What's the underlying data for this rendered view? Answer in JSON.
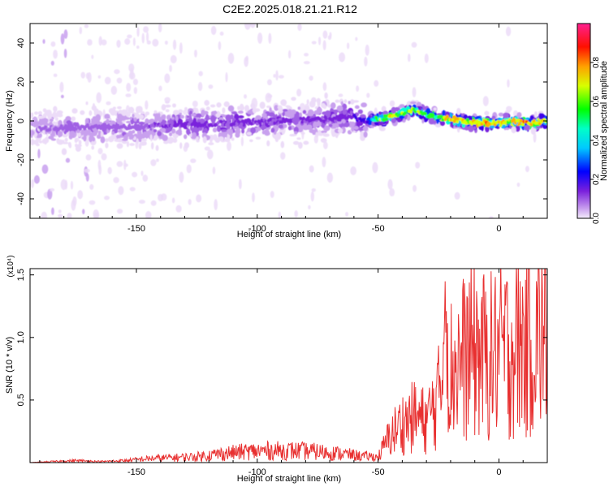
{
  "title": "C2E2.2025.018.21.21.R12",
  "chart_data": [
    {
      "type": "heatmap",
      "xlabel": "Height of straight line (km)",
      "ylabel": "Frequency (Hz)",
      "xlim": [
        -194,
        20
      ],
      "ylim": [
        -50,
        50
      ],
      "xticks": [
        -150,
        -100,
        -50,
        0
      ],
      "yticks": [
        -40,
        -20,
        0,
        20,
        40
      ],
      "colorbar": {
        "label": "Normalized spectral amplitude",
        "range": [
          0,
          1
        ],
        "ticks": [
          0.0,
          0.2,
          0.4,
          0.6,
          0.8
        ]
      },
      "ridge": {
        "x": [
          -190,
          -170,
          -150,
          -130,
          -110,
          -90,
          -70,
          -60,
          -55,
          -50,
          -45,
          -40,
          -35,
          -30,
          -25,
          -20,
          -15,
          -10,
          -5,
          0,
          5,
          10,
          15,
          20
        ],
        "y": [
          -4,
          -3,
          -3,
          -2,
          -1,
          0,
          1,
          2,
          0,
          1,
          2,
          4,
          6,
          3,
          2,
          1,
          0,
          -1,
          -1,
          -1,
          0,
          -1,
          -1,
          0
        ],
        "peak_amplitude": [
          0.2,
          0.25,
          0.25,
          0.3,
          0.3,
          0.3,
          0.3,
          0.35,
          0.4,
          0.7,
          0.8,
          0.7,
          0.75,
          0.7,
          0.75,
          0.85,
          0.8,
          0.85,
          0.9,
          0.85,
          0.8,
          0.9,
          0.85,
          0.8
        ]
      },
      "colors": [
        "#ffffff",
        "#ecdcf8",
        "#c8a0ee",
        "#a060e4",
        "#7a20dc",
        "#3c00e8",
        "#0030ff",
        "#00b8ff",
        "#00ffd8",
        "#20ff20",
        "#d8ff00",
        "#ffb000",
        "#ff3000",
        "#ff2080"
      ]
    },
    {
      "type": "line",
      "xlabel": "Height of straight line (km)",
      "ylabel": "SNR (10 * v/v)",
      "y_multiplier": "(x10⁴)",
      "xlim": [
        -194,
        20
      ],
      "ylim": [
        0,
        1.55
      ],
      "xticks": [
        -150,
        -100,
        -50,
        0
      ],
      "yticks": [
        0.5,
        1.0,
        1.5
      ],
      "series": [
        {
          "color": "#e83030",
          "x": [
            -194,
            -185,
            -175,
            -165,
            -155,
            -145,
            -135,
            -125,
            -115,
            -105,
            -95,
            -85,
            -75,
            -65,
            -55,
            -50,
            -45,
            -40,
            -35,
            -30,
            -25,
            -22,
            -20,
            -15,
            -10,
            -5,
            0,
            5,
            10,
            15,
            20
          ],
          "y": [
            0.0,
            0.01,
            0.02,
            0.01,
            0.02,
            0.04,
            0.05,
            0.06,
            0.09,
            0.11,
            0.12,
            0.12,
            0.11,
            0.09,
            0.06,
            0.05,
            0.25,
            0.36,
            0.42,
            0.38,
            0.6,
            1.25,
            0.85,
            0.95,
            1.05,
            0.95,
            1.02,
            1.05,
            1.1,
            1.15,
            1.2
          ]
        }
      ]
    }
  ]
}
